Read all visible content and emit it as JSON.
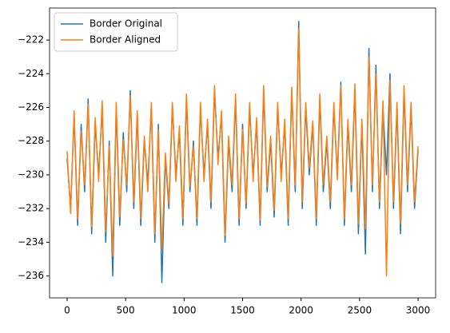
{
  "chart_data": {
    "type": "line",
    "x": [
      0,
      30,
      60,
      90,
      120,
      150,
      180,
      210,
      240,
      270,
      300,
      330,
      360,
      390,
      420,
      450,
      480,
      510,
      540,
      570,
      600,
      630,
      660,
      690,
      720,
      750,
      780,
      810,
      840,
      870,
      900,
      930,
      960,
      990,
      1020,
      1050,
      1080,
      1110,
      1140,
      1170,
      1200,
      1230,
      1260,
      1290,
      1320,
      1350,
      1380,
      1410,
      1440,
      1470,
      1500,
      1530,
      1560,
      1590,
      1620,
      1650,
      1680,
      1710,
      1740,
      1770,
      1800,
      1830,
      1860,
      1890,
      1920,
      1950,
      1980,
      2010,
      2040,
      2070,
      2100,
      2130,
      2160,
      2190,
      2220,
      2250,
      2280,
      2310,
      2340,
      2370,
      2400,
      2430,
      2460,
      2490,
      2520,
      2550,
      2580,
      2610,
      2640,
      2670,
      2700,
      2730,
      2760,
      2790,
      2820,
      2850,
      2880,
      2910,
      2940,
      2970,
      3000
    ],
    "series": [
      {
        "name": "Border Original",
        "color": "#1f77b4",
        "values": [
          -229,
          -232,
          -226.5,
          -233,
          -227,
          -231,
          -225.5,
          -233.5,
          -227,
          -230,
          -226,
          -234,
          -228,
          -236,
          -226,
          -233,
          -227.5,
          -231,
          -225,
          -232,
          -226.5,
          -233,
          -228,
          -230.5,
          -226,
          -234,
          -227,
          -236.4,
          -229,
          -232,
          -226,
          -230,
          -227.5,
          -233,
          -225.5,
          -231,
          -228,
          -233,
          -226,
          -230,
          -227,
          -232,
          -225,
          -229,
          -226.5,
          -234,
          -228,
          -231,
          -225.5,
          -233,
          -227,
          -232,
          -226,
          -230,
          -227,
          -233,
          -225,
          -231,
          -228,
          -232.5,
          -226,
          -230,
          -227,
          -233,
          -225,
          -231,
          -220.9,
          -232,
          -226,
          -230,
          -227,
          -233,
          -225.5,
          -231,
          -228,
          -232,
          -226,
          -230,
          -224.5,
          -233,
          -227,
          -231,
          -225,
          -233.5,
          -227,
          -234.7,
          -222.5,
          -231,
          -223.5,
          -232,
          -226,
          -230,
          -224,
          -232,
          -226,
          -233.5,
          -225,
          -231,
          -226,
          -232,
          -228.5
        ]
      },
      {
        "name": "Border Aligned",
        "color": "#ff7f0e",
        "values": [
          -228.6,
          -232.3,
          -226.2,
          -232.6,
          -227.4,
          -230.6,
          -225.8,
          -233.1,
          -226.6,
          -230.4,
          -225.6,
          -233.4,
          -228.3,
          -234.8,
          -225.7,
          -232.5,
          -227.9,
          -230.6,
          -225.3,
          -231.6,
          -226.2,
          -232.6,
          -227.7,
          -231,
          -225.7,
          -233.5,
          -227.3,
          -234.5,
          -228.7,
          -231.7,
          -225.7,
          -230.4,
          -227.1,
          -232.6,
          -225.2,
          -230.7,
          -228.3,
          -232.6,
          -225.7,
          -230.4,
          -226.7,
          -231.6,
          -224.7,
          -229.4,
          -226.2,
          -233.6,
          -227.7,
          -230.6,
          -225.2,
          -232.6,
          -227.3,
          -231.7,
          -225.7,
          -230.4,
          -226.6,
          -232.7,
          -224.7,
          -230.7,
          -227.7,
          -232.1,
          -225.7,
          -230.4,
          -226.7,
          -232.6,
          -224.8,
          -230.6,
          -221.3,
          -231.6,
          -225.7,
          -229.6,
          -226.8,
          -232.6,
          -225.2,
          -230.6,
          -227.7,
          -231.6,
          -225.7,
          -230.3,
          -224.7,
          -232.6,
          -226.7,
          -230.6,
          -224.6,
          -232.9,
          -226.7,
          -233.2,
          -223,
          -230.6,
          -224,
          -231.6,
          -225.6,
          -236,
          -224.4,
          -231.6,
          -225.7,
          -232.9,
          -224.7,
          -230.6,
          -225.7,
          -231.6,
          -228.3
        ]
      }
    ],
    "xlim": [
      -150,
      3150
    ],
    "ylim": [
      -237.3,
      -220.1
    ],
    "xticks": [
      0,
      500,
      1000,
      1500,
      2000,
      2500,
      3000
    ],
    "yticks": [
      {
        "value": -236,
        "label": "−236"
      },
      {
        "value": -234,
        "label": "−234"
      },
      {
        "value": -232,
        "label": "−232"
      },
      {
        "value": -230,
        "label": "−230"
      },
      {
        "value": -228,
        "label": "−228"
      },
      {
        "value": -226,
        "label": "−226"
      },
      {
        "value": -224,
        "label": "−224"
      },
      {
        "value": -222,
        "label": "−222"
      }
    ],
    "legend": "upper left"
  }
}
